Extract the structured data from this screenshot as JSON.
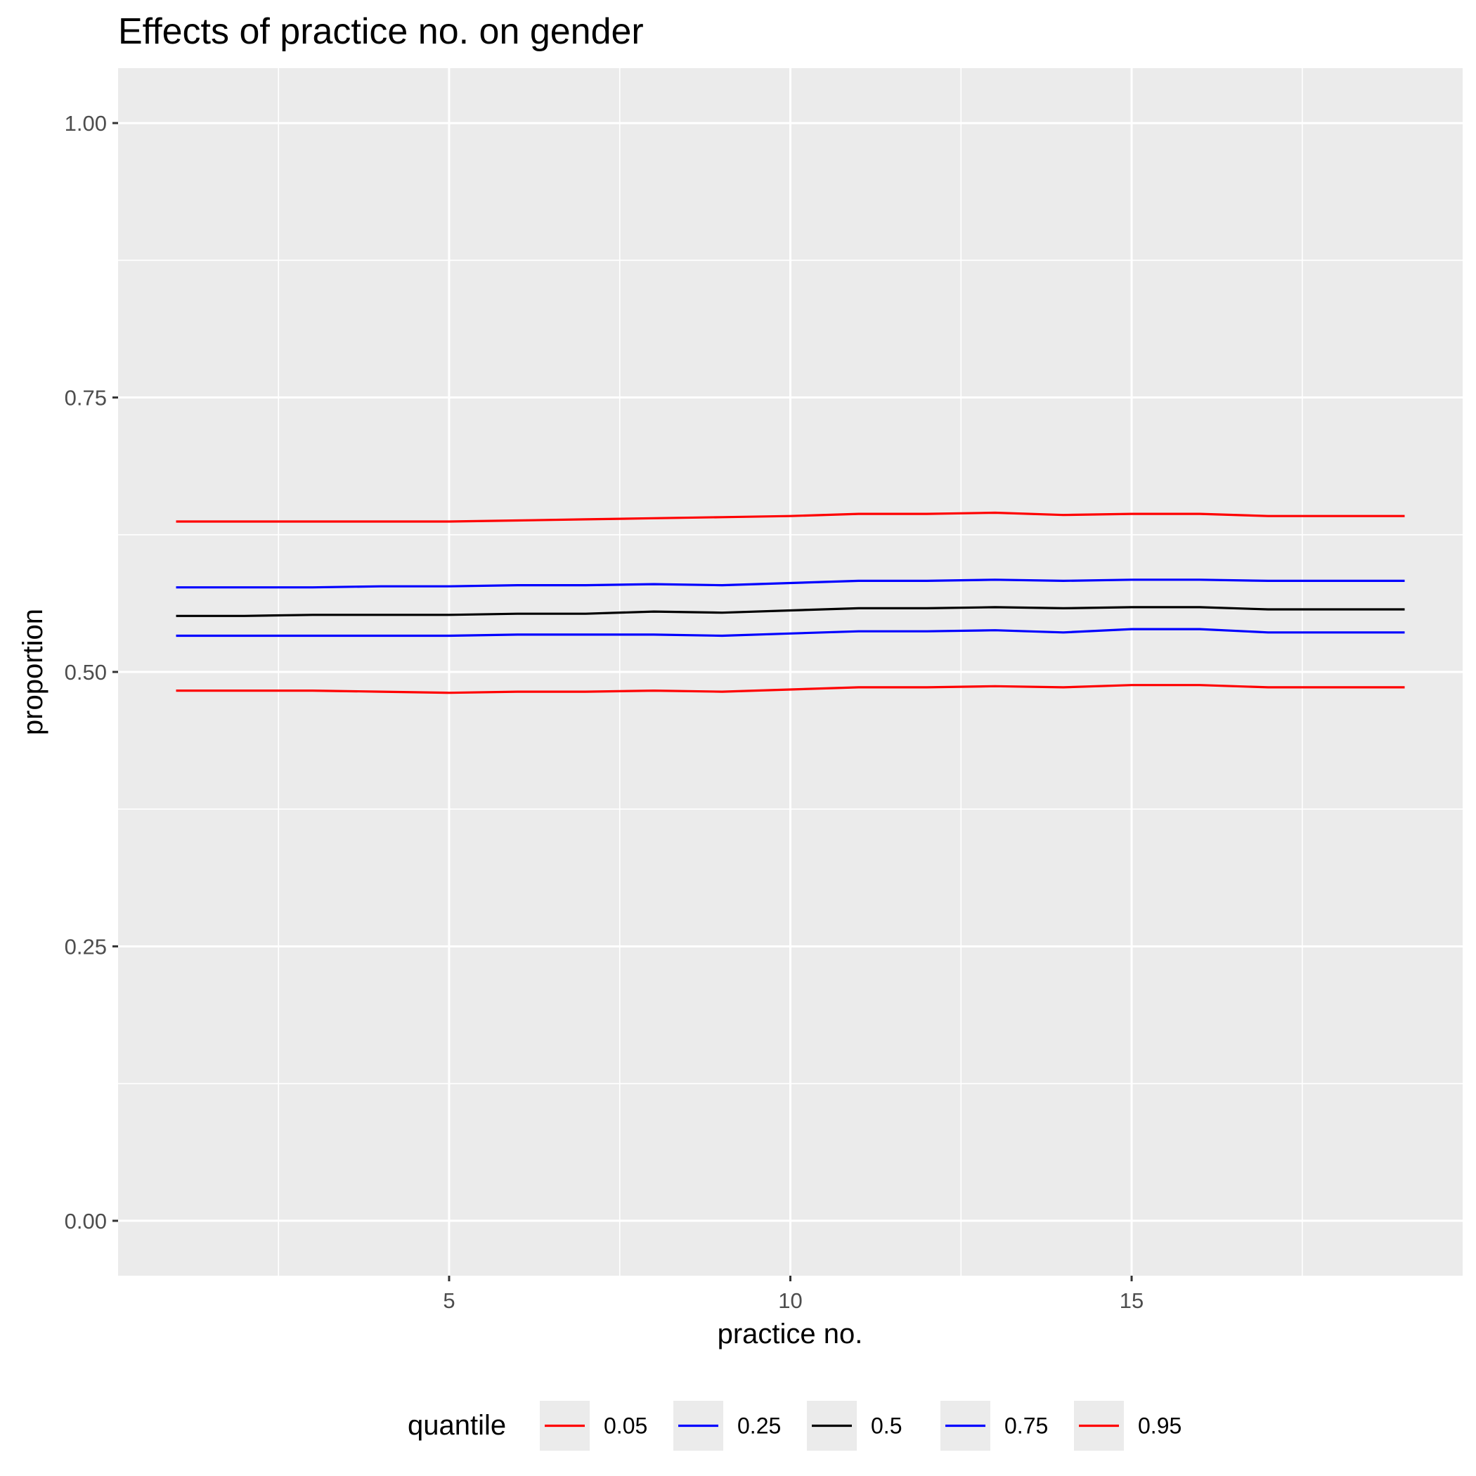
{
  "chart_data": {
    "type": "line",
    "title": "Effects of practice no. on gender",
    "xlabel": "practice no.",
    "ylabel": "proportion",
    "xlim": [
      0.15,
      19.85
    ],
    "ylim": [
      -0.05,
      1.05
    ],
    "x_ticks": [
      5,
      10,
      15
    ],
    "x_tick_labels": [
      "5",
      "10",
      "15"
    ],
    "y_ticks": [
      0,
      0.25,
      0.5,
      0.75,
      1.0
    ],
    "y_tick_labels": [
      "0.00",
      "0.25",
      "0.50",
      "0.75",
      "1.00"
    ],
    "grid": true,
    "legend": {
      "title": "quantile",
      "position": "bottom"
    },
    "x": [
      1,
      2,
      3,
      4,
      5,
      6,
      7,
      8,
      9,
      10,
      11,
      12,
      13,
      14,
      15,
      16,
      17,
      18,
      19
    ],
    "series": [
      {
        "name": "0.05",
        "color": "#ff0000",
        "values": [
          0.483,
          0.483,
          0.483,
          0.482,
          0.481,
          0.482,
          0.482,
          0.483,
          0.482,
          0.484,
          0.486,
          0.486,
          0.487,
          0.486,
          0.488,
          0.488,
          0.486,
          0.486,
          0.486
        ]
      },
      {
        "name": "0.25",
        "color": "#0000ff",
        "values": [
          0.533,
          0.533,
          0.533,
          0.533,
          0.533,
          0.534,
          0.534,
          0.534,
          0.533,
          0.535,
          0.537,
          0.537,
          0.538,
          0.536,
          0.539,
          0.539,
          0.536,
          0.536,
          0.536
        ]
      },
      {
        "name": "0.5",
        "color": "#000000",
        "values": [
          0.551,
          0.551,
          0.552,
          0.552,
          0.552,
          0.553,
          0.553,
          0.555,
          0.554,
          0.556,
          0.558,
          0.558,
          0.559,
          0.558,
          0.559,
          0.559,
          0.557,
          0.557,
          0.557
        ]
      },
      {
        "name": "0.75",
        "color": "#0000ff",
        "values": [
          0.577,
          0.577,
          0.577,
          0.578,
          0.578,
          0.579,
          0.579,
          0.58,
          0.579,
          0.581,
          0.583,
          0.583,
          0.584,
          0.583,
          0.584,
          0.584,
          0.583,
          0.583,
          0.583
        ]
      },
      {
        "name": "0.95",
        "color": "#ff0000",
        "values": [
          0.637,
          0.637,
          0.637,
          0.637,
          0.637,
          0.638,
          0.639,
          0.64,
          0.641,
          0.642,
          0.644,
          0.644,
          0.645,
          0.643,
          0.644,
          0.644,
          0.642,
          0.642,
          0.642
        ]
      }
    ]
  }
}
